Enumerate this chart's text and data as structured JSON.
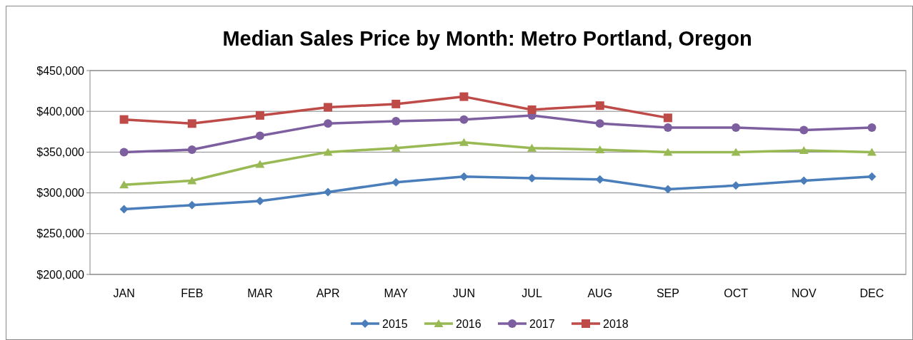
{
  "chart_data": {
    "type": "line",
    "title": "Median Sales Price by Month: Metro Portland, Oregon",
    "categories": [
      "JAN",
      "FEB",
      "MAR",
      "APR",
      "MAY",
      "JUN",
      "JUL",
      "AUG",
      "SEP",
      "OCT",
      "NOV",
      "DEC"
    ],
    "series": [
      {
        "name": "2015",
        "color": "#4a7ebb",
        "marker": "diamond",
        "values": [
          280000,
          285000,
          290000,
          301000,
          313000,
          320000,
          318000,
          316500,
          304500,
          309000,
          315000,
          320000
        ]
      },
      {
        "name": "2016",
        "color": "#98b954",
        "marker": "triangle",
        "values": [
          310000,
          315000,
          335000,
          350000,
          355000,
          362000,
          355000,
          353000,
          350000,
          350000,
          352000,
          350000
        ]
      },
      {
        "name": "2017",
        "color": "#7d5fa0",
        "marker": "circle",
        "values": [
          350000,
          353000,
          370000,
          385000,
          388000,
          390000,
          395000,
          385000,
          380000,
          380000,
          377000,
          380000
        ]
      },
      {
        "name": "2018",
        "color": "#be4b48",
        "marker": "square",
        "values": [
          390000,
          385000,
          395000,
          405000,
          409000,
          418000,
          402000,
          407000,
          392000,
          null,
          null,
          null
        ]
      }
    ],
    "ylim": [
      200000,
      450000
    ],
    "yticks": [
      {
        "value": 200000,
        "label": "$200,000"
      },
      {
        "value": 250000,
        "label": "$250,000"
      },
      {
        "value": 300000,
        "label": "$300,000"
      },
      {
        "value": 350000,
        "label": "$350,000"
      },
      {
        "value": 400000,
        "label": "$400,000"
      },
      {
        "value": 450000,
        "label": "$450,000"
      }
    ],
    "grid": "y",
    "legend": "bottom"
  }
}
